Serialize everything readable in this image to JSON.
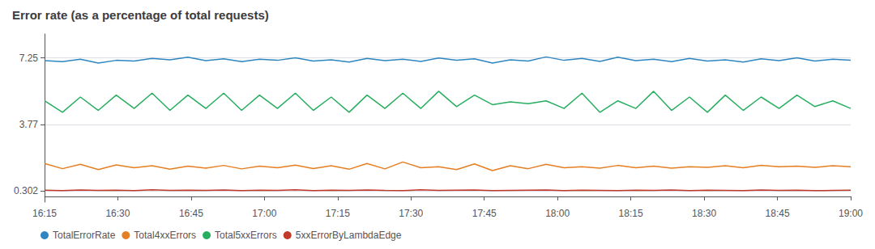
{
  "chart_data": {
    "type": "line",
    "title": "Error rate (as a percentage of total requests)",
    "x": [
      0,
      1,
      2,
      3,
      4,
      5,
      6,
      7,
      8,
      9,
      10,
      11,
      12,
      13,
      14,
      15,
      16,
      17,
      18,
      19,
      20,
      21,
      22,
      23,
      24,
      25,
      26,
      27,
      28,
      29,
      30,
      31,
      32,
      33,
      34,
      35,
      36,
      37,
      38,
      39,
      40,
      41,
      42,
      43,
      44,
      45
    ],
    "xlim": [
      0,
      45
    ],
    "xticks": [
      {
        "value": 0,
        "label": "16:15"
      },
      {
        "value": 4.090909090909091,
        "label": "16:30"
      },
      {
        "value": 8.181818181818182,
        "label": "16:45"
      },
      {
        "value": 12.272727272727273,
        "label": "17:00"
      },
      {
        "value": 16.363636363636363,
        "label": "17:15"
      },
      {
        "value": 20.454545454545453,
        "label": "17:30"
      },
      {
        "value": 24.545454545454547,
        "label": "17:45"
      },
      {
        "value": 28.636363636363637,
        "label": "18:00"
      },
      {
        "value": 32.72727272727273,
        "label": "18:15"
      },
      {
        "value": 36.81818181818182,
        "label": "18:30"
      },
      {
        "value": 40.90909090909091,
        "label": "18:45"
      },
      {
        "value": 45,
        "label": "19:00"
      }
    ],
    "ylim": [
      -0.3,
      8.5
    ],
    "yticks": [
      0.302,
      3.77,
      7.25
    ],
    "grid": true,
    "legend": "bottom",
    "series": [
      {
        "name": "TotalErrorRate",
        "color": "#2e86c1",
        "values": [
          7.1,
          7.05,
          7.18,
          6.98,
          7.12,
          7.08,
          7.22,
          7.15,
          7.28,
          7.1,
          7.2,
          7.05,
          7.18,
          7.12,
          7.25,
          7.08,
          7.15,
          7.03,
          7.22,
          7.1,
          7.18,
          7.06,
          7.24,
          7.12,
          7.2,
          6.98,
          7.15,
          7.08,
          7.3,
          7.12,
          7.22,
          7.06,
          7.28,
          7.1,
          7.18,
          7.05,
          7.22,
          7.08,
          7.15,
          7.03,
          7.2,
          7.1,
          7.25,
          7.08,
          7.18,
          7.12
        ]
      },
      {
        "name": "Total4xxErrors",
        "color": "#e67e22",
        "values": [
          1.72,
          1.45,
          1.68,
          1.4,
          1.65,
          1.5,
          1.6,
          1.42,
          1.58,
          1.48,
          1.62,
          1.44,
          1.58,
          1.5,
          1.64,
          1.46,
          1.6,
          1.42,
          1.72,
          1.44,
          1.8,
          1.5,
          1.55,
          1.4,
          1.7,
          1.35,
          1.6,
          1.45,
          1.68,
          1.5,
          1.55,
          1.48,
          1.62,
          1.5,
          1.58,
          1.48,
          1.55,
          1.52,
          1.6,
          1.5,
          1.62,
          1.55,
          1.58,
          1.52,
          1.6,
          1.55
        ]
      },
      {
        "name": "Total5xxErrors",
        "color": "#27ae60",
        "values": [
          5.0,
          4.4,
          5.2,
          4.5,
          5.3,
          4.6,
          5.4,
          4.5,
          5.3,
          4.6,
          5.4,
          4.5,
          5.3,
          4.6,
          5.4,
          4.5,
          5.2,
          4.4,
          5.3,
          4.6,
          5.4,
          4.6,
          5.5,
          4.7,
          5.3,
          4.8,
          4.95,
          4.85,
          5.0,
          4.6,
          5.4,
          4.4,
          5.0,
          4.6,
          5.5,
          4.5,
          5.2,
          4.4,
          5.3,
          4.5,
          5.2,
          4.6,
          5.3,
          4.7,
          5.0,
          4.6
        ]
      },
      {
        "name": "5xxErrorByLambdaEdge",
        "color": "#c0392b",
        "values": [
          0.32,
          0.3,
          0.33,
          0.31,
          0.32,
          0.3,
          0.34,
          0.31,
          0.32,
          0.31,
          0.33,
          0.3,
          0.32,
          0.31,
          0.34,
          0.3,
          0.32,
          0.31,
          0.33,
          0.31,
          0.3,
          0.34,
          0.31,
          0.32,
          0.33,
          0.3,
          0.31,
          0.32,
          0.33,
          0.3,
          0.32,
          0.31,
          0.3,
          0.32,
          0.31,
          0.33,
          0.3,
          0.32,
          0.31,
          0.3,
          0.33,
          0.31,
          0.32,
          0.3,
          0.31,
          0.32
        ]
      }
    ]
  }
}
